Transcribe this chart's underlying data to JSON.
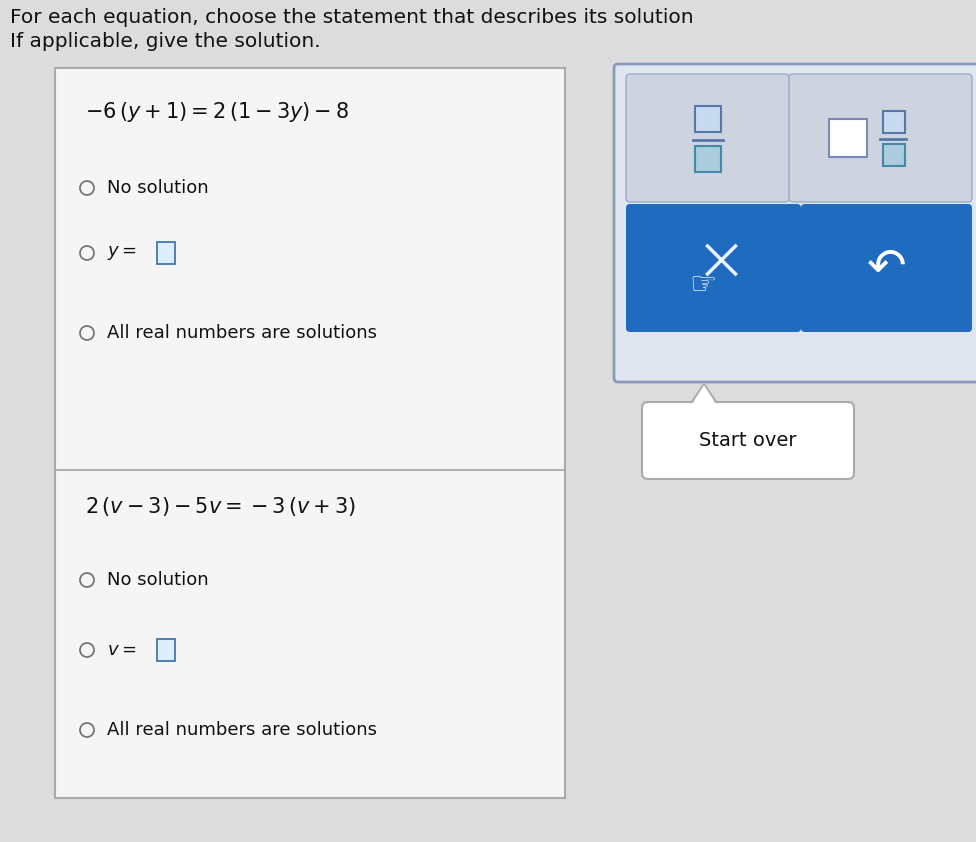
{
  "background_color": "#dcdcdc",
  "title_line1": "For each equation, choose the statement that describes its solution",
  "title_line2": "If applicable, give the solution.",
  "title_fontsize": 14.5,
  "title_color": "#111111",
  "box_bg": "#f5f5f5",
  "box_border": "#aaaaaa",
  "eq1_text": "$-6\\,(y + 1) = 2\\,(1 - 3y) - 8$",
  "eq2_text": "$2\\,(v - 3) - 5v = -3\\,(v + 3)$",
  "opt1_a": "No solution",
  "opt1_b_var": "y",
  "opt1_c": "All real numbers are solutions",
  "opt2_a": "No solution",
  "opt2_b_var": "v",
  "opt2_c": "All real numbers are solutions",
  "panel_bg": "#e0e6f0",
  "panel_border": "#8899bb",
  "btn_gray_bg": "#cdd4df",
  "btn_gray_border": "#9aabcc",
  "btn_blue_bg": "#1f6bbf",
  "sq_border_top": "#5577aa",
  "sq_fill_top": "#c8daf0",
  "sq_border_bot": "#4488aa",
  "sq_fill_bot": "#aaccdd",
  "sq_border_whole": "#7788bb",
  "sq_fill_whole": "#ffffff",
  "bubble_bg": "#ffffff",
  "bubble_border": "#aaaaaa",
  "start_over_text": "Start over",
  "dot_color": "#777777",
  "eq_fontsize": 14,
  "opt_fontsize": 13
}
